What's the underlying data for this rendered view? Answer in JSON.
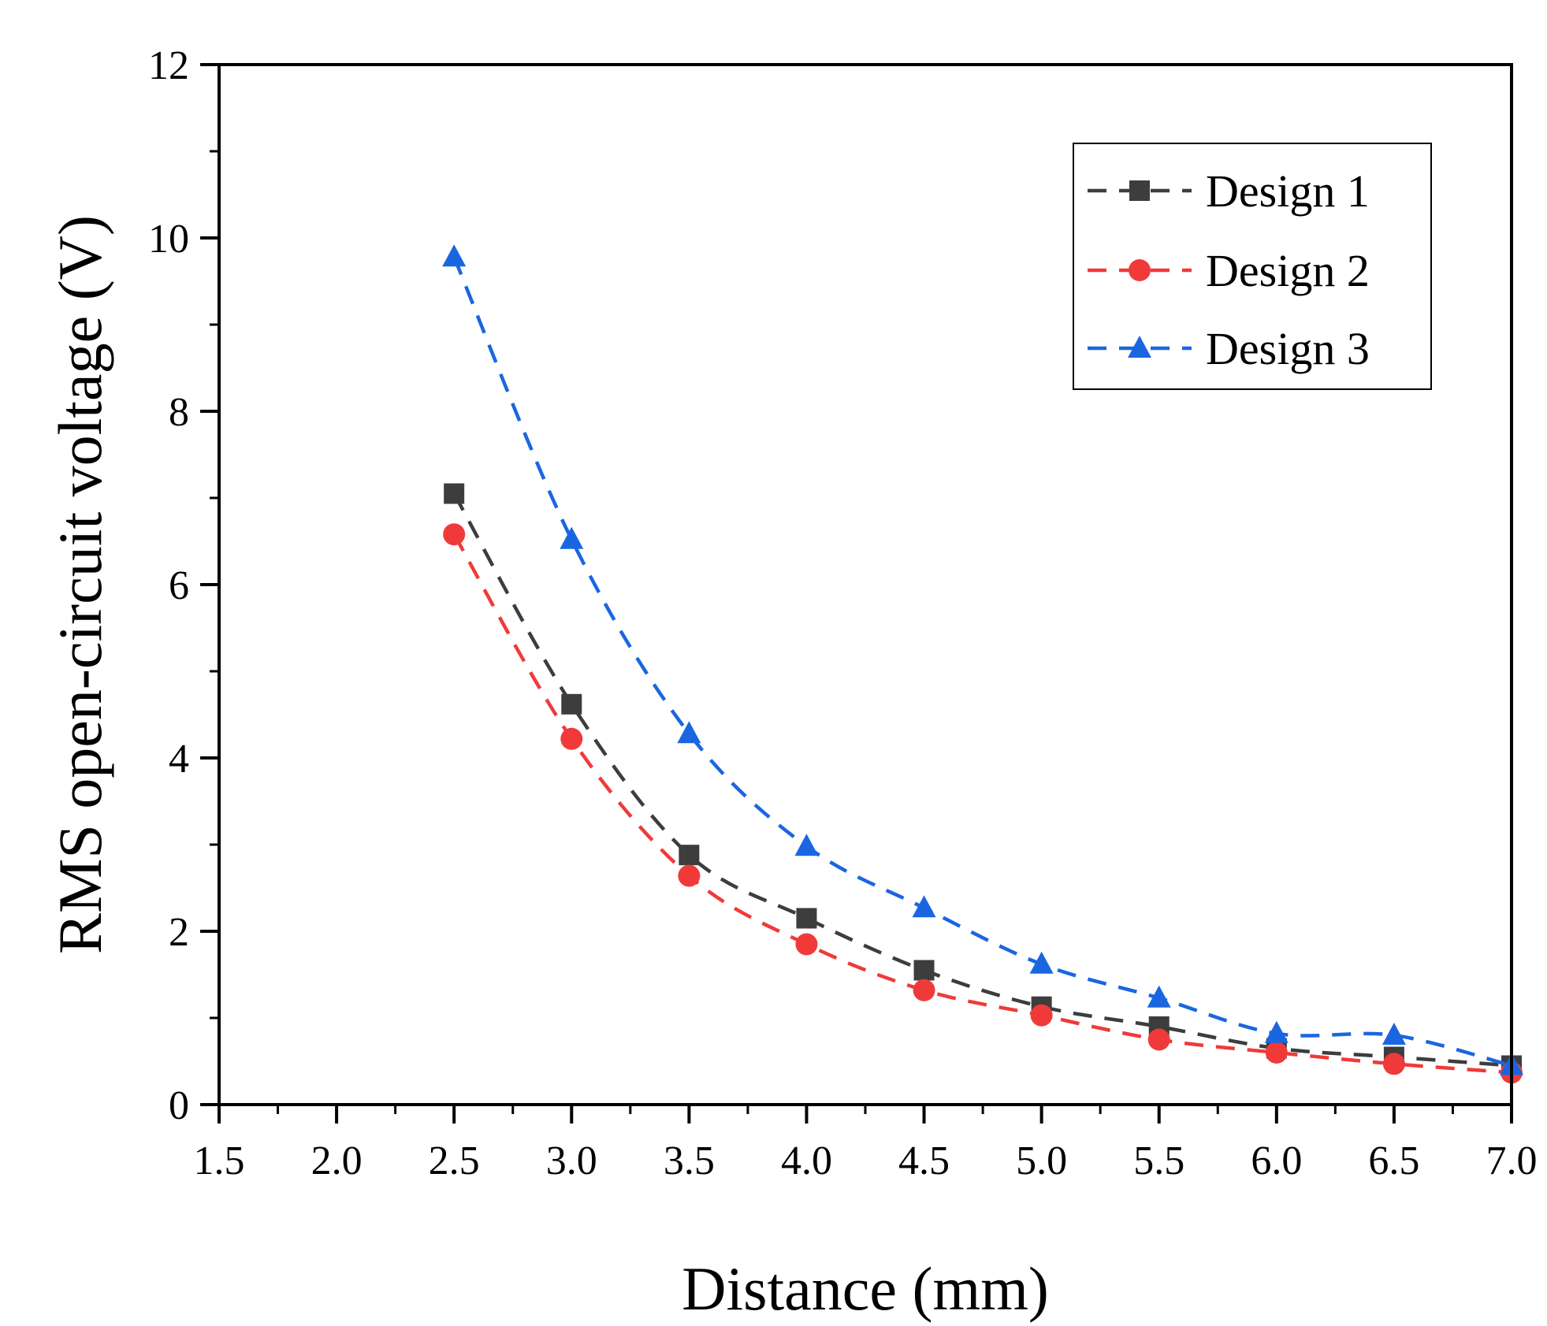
{
  "chart_data": {
    "type": "line",
    "title": "",
    "xlabel": "Distance (mm)",
    "ylabel": "RMS open-circuit voltage (V)",
    "xlim": [
      1.5,
      7.0
    ],
    "ylim": [
      0,
      12
    ],
    "x_ticks": [
      "1.5",
      "2.0",
      "2.5",
      "3.0",
      "3.5",
      "4.0",
      "4.5",
      "5.0",
      "5.5",
      "6.0",
      "6.5",
      "7.0"
    ],
    "y_ticks": [
      "0",
      "2",
      "4",
      "6",
      "8",
      "10",
      "12"
    ],
    "grid": false,
    "legend_position": "top-right",
    "x": [
      2.5,
      3.0,
      3.5,
      4.0,
      4.5,
      5.0,
      5.5,
      6.0,
      6.5,
      7.0
    ],
    "series": [
      {
        "name": "Design 1",
        "marker": "square",
        "color": "#3d3d3d",
        "values": [
          7.05,
          4.62,
          2.88,
          2.15,
          1.55,
          1.13,
          0.9,
          0.65,
          0.55,
          0.45
        ]
      },
      {
        "name": "Design 2",
        "marker": "circle",
        "color": "#f03a3a",
        "values": [
          6.58,
          4.22,
          2.64,
          1.85,
          1.32,
          1.03,
          0.75,
          0.6,
          0.47,
          0.37
        ]
      },
      {
        "name": "Design 3",
        "marker": "triangle",
        "color": "#1a66e0",
        "values": [
          9.78,
          6.52,
          4.28,
          2.98,
          2.27,
          1.62,
          1.23,
          0.82,
          0.8,
          0.45
        ]
      }
    ]
  }
}
